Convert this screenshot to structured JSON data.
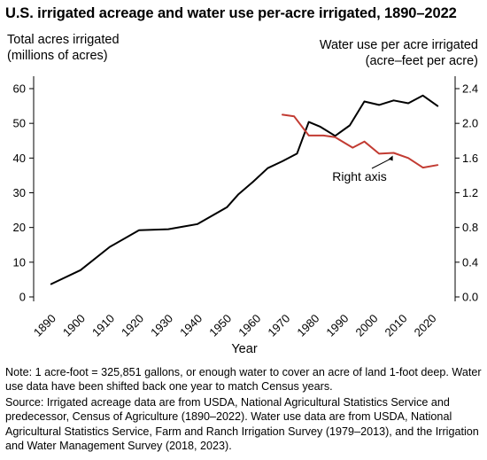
{
  "title": "U.S. irrigated acreage and water use per-acre irrigated, 1890–2022",
  "y_left_label": [
    "Total acres irrigated",
    "(millions of acres)"
  ],
  "y_right_label": [
    "Water use per acre irrigated",
    "(acre–feet per acre)"
  ],
  "note": "Note: 1 acre-foot = 325,851 gallons, or enough water to cover an acre of land 1-foot deep. Water use data have been shifted back one year to match Census years.",
  "source": "Source: Irrigated acreage data are from USDA, National Agricultural Statistics Service and predecessor, Census of Agriculture (1890–2022). Water use data are from USDA, National Agricultural Statistics Service, Farm and Ranch Irrigation Survey (1979–2013), and the Irrigation and Water Management Survey (2018, 2023).",
  "chart_data": {
    "type": "line",
    "title": "U.S. irrigated acreage and water use per-acre irrigated, 1890–2022",
    "xlabel": "Year",
    "ylabel_left": "Total acres irrigated (millions of acres)",
    "ylabel_right": "Water use per acre irrigated (acre–feet per acre)",
    "xlim": [
      1890,
      2022
    ],
    "ylim_left": [
      0,
      60
    ],
    "ylim_right": [
      0,
      2.4
    ],
    "x_ticks": [
      "1890",
      "1900",
      "1910",
      "1920",
      "1930",
      "1940",
      "1950",
      "1960",
      "1970",
      "1980",
      "1990",
      "2000",
      "2010",
      "2020"
    ],
    "y_left_ticks": [
      "0",
      "10",
      "20",
      "30",
      "40",
      "50",
      "60"
    ],
    "y_right_ticks": [
      "0.0",
      "0.4",
      "0.8",
      "1.2",
      "1.6",
      "2.0",
      "2.4"
    ],
    "grid": false,
    "series": [
      {
        "axis": "left",
        "color": "#000000",
        "x": [
          1890,
          1900,
          1910,
          1920,
          1930,
          1940,
          1950,
          1954,
          1959,
          1964,
          1969,
          1974,
          1978,
          1982,
          1987,
          1992,
          1997,
          2002,
          2007,
          2012,
          2017,
          2022
        ],
        "values": [
          3.7,
          7.7,
          14.4,
          19.2,
          19.5,
          21.0,
          25.8,
          29.6,
          33.2,
          37.1,
          39.1,
          41.3,
          50.4,
          49.0,
          46.4,
          49.4,
          56.3,
          55.3,
          56.6,
          55.8,
          58.0,
          55.0
        ]
      },
      {
        "axis": "right",
        "color": "#c23b32",
        "x": [
          1969,
          1973,
          1978,
          1983,
          1987,
          1993,
          1997,
          2002,
          2007,
          2012,
          2017,
          2022
        ],
        "values": [
          2.1,
          2.08,
          1.86,
          1.86,
          1.84,
          1.72,
          1.79,
          1.65,
          1.66,
          1.6,
          1.49,
          1.52
        ]
      }
    ],
    "annotations": [
      {
        "text": "Right axis",
        "target_x": 2007,
        "target_y": 1.66,
        "axis": "right"
      }
    ]
  }
}
